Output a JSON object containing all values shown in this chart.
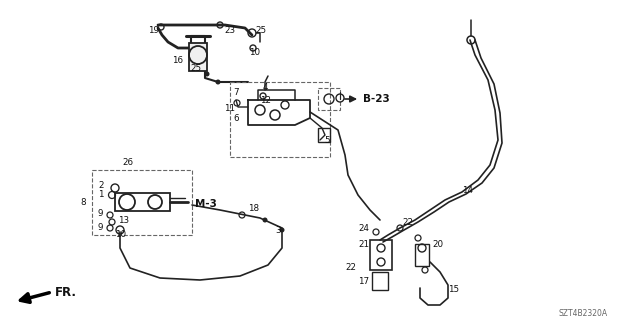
{
  "bg_color": "#ffffff",
  "line_color": "#222222",
  "diagram_id": "SZT4B2320A",
  "b23_label": "B-23",
  "m3_label": "M-3"
}
